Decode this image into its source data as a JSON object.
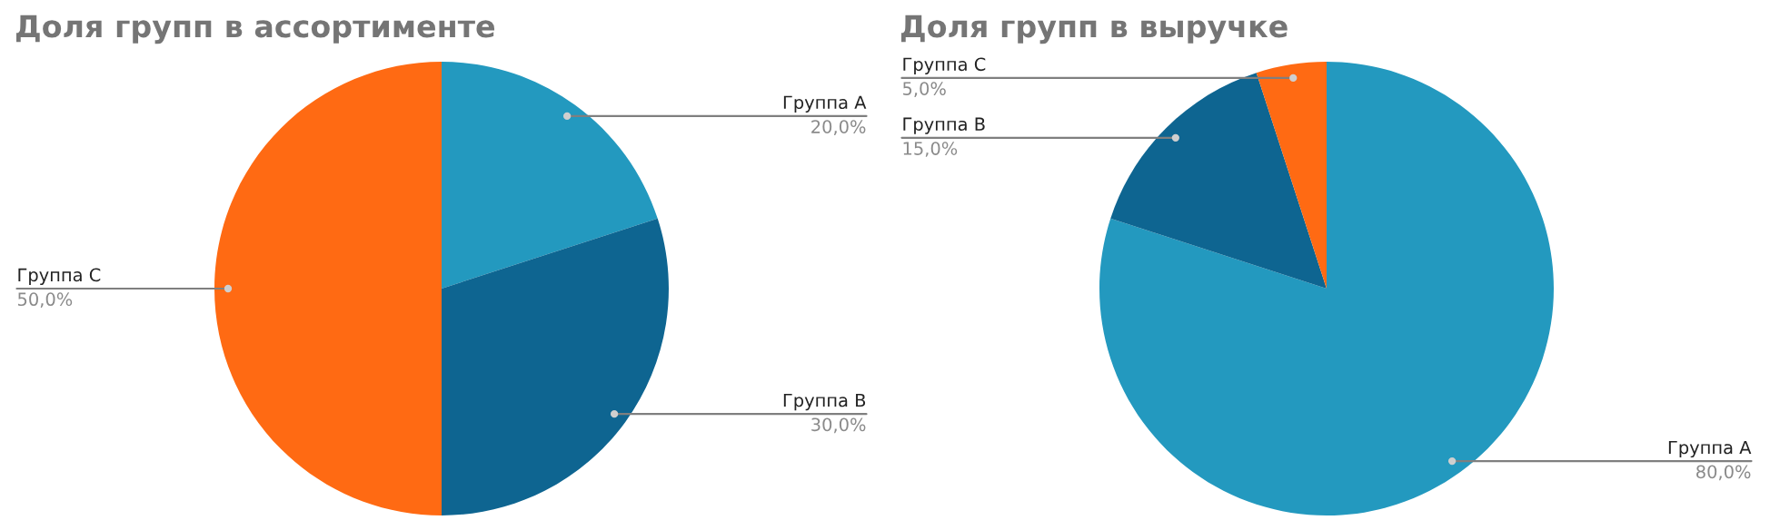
{
  "chart_data": [
    {
      "type": "pie",
      "title": "Доля групп в ассортименте",
      "categories": [
        "Группа A",
        "Группа B",
        "Группа C"
      ],
      "values": [
        20,
        30,
        50
      ],
      "colors": [
        "#2399bf",
        "#0e6591",
        "#ff6a13"
      ],
      "value_labels": [
        "20,0%",
        "30,0%",
        "50,0%"
      ]
    },
    {
      "type": "pie",
      "title": "Доля групп в выручке",
      "categories": [
        "Группа A",
        "Группа B",
        "Группа C"
      ],
      "values": [
        80,
        15,
        5
      ],
      "colors": [
        "#2399bf",
        "#0e6591",
        "#ff6a13"
      ],
      "value_labels": [
        "80,0%",
        "15,0%",
        "5,0%"
      ]
    }
  ]
}
